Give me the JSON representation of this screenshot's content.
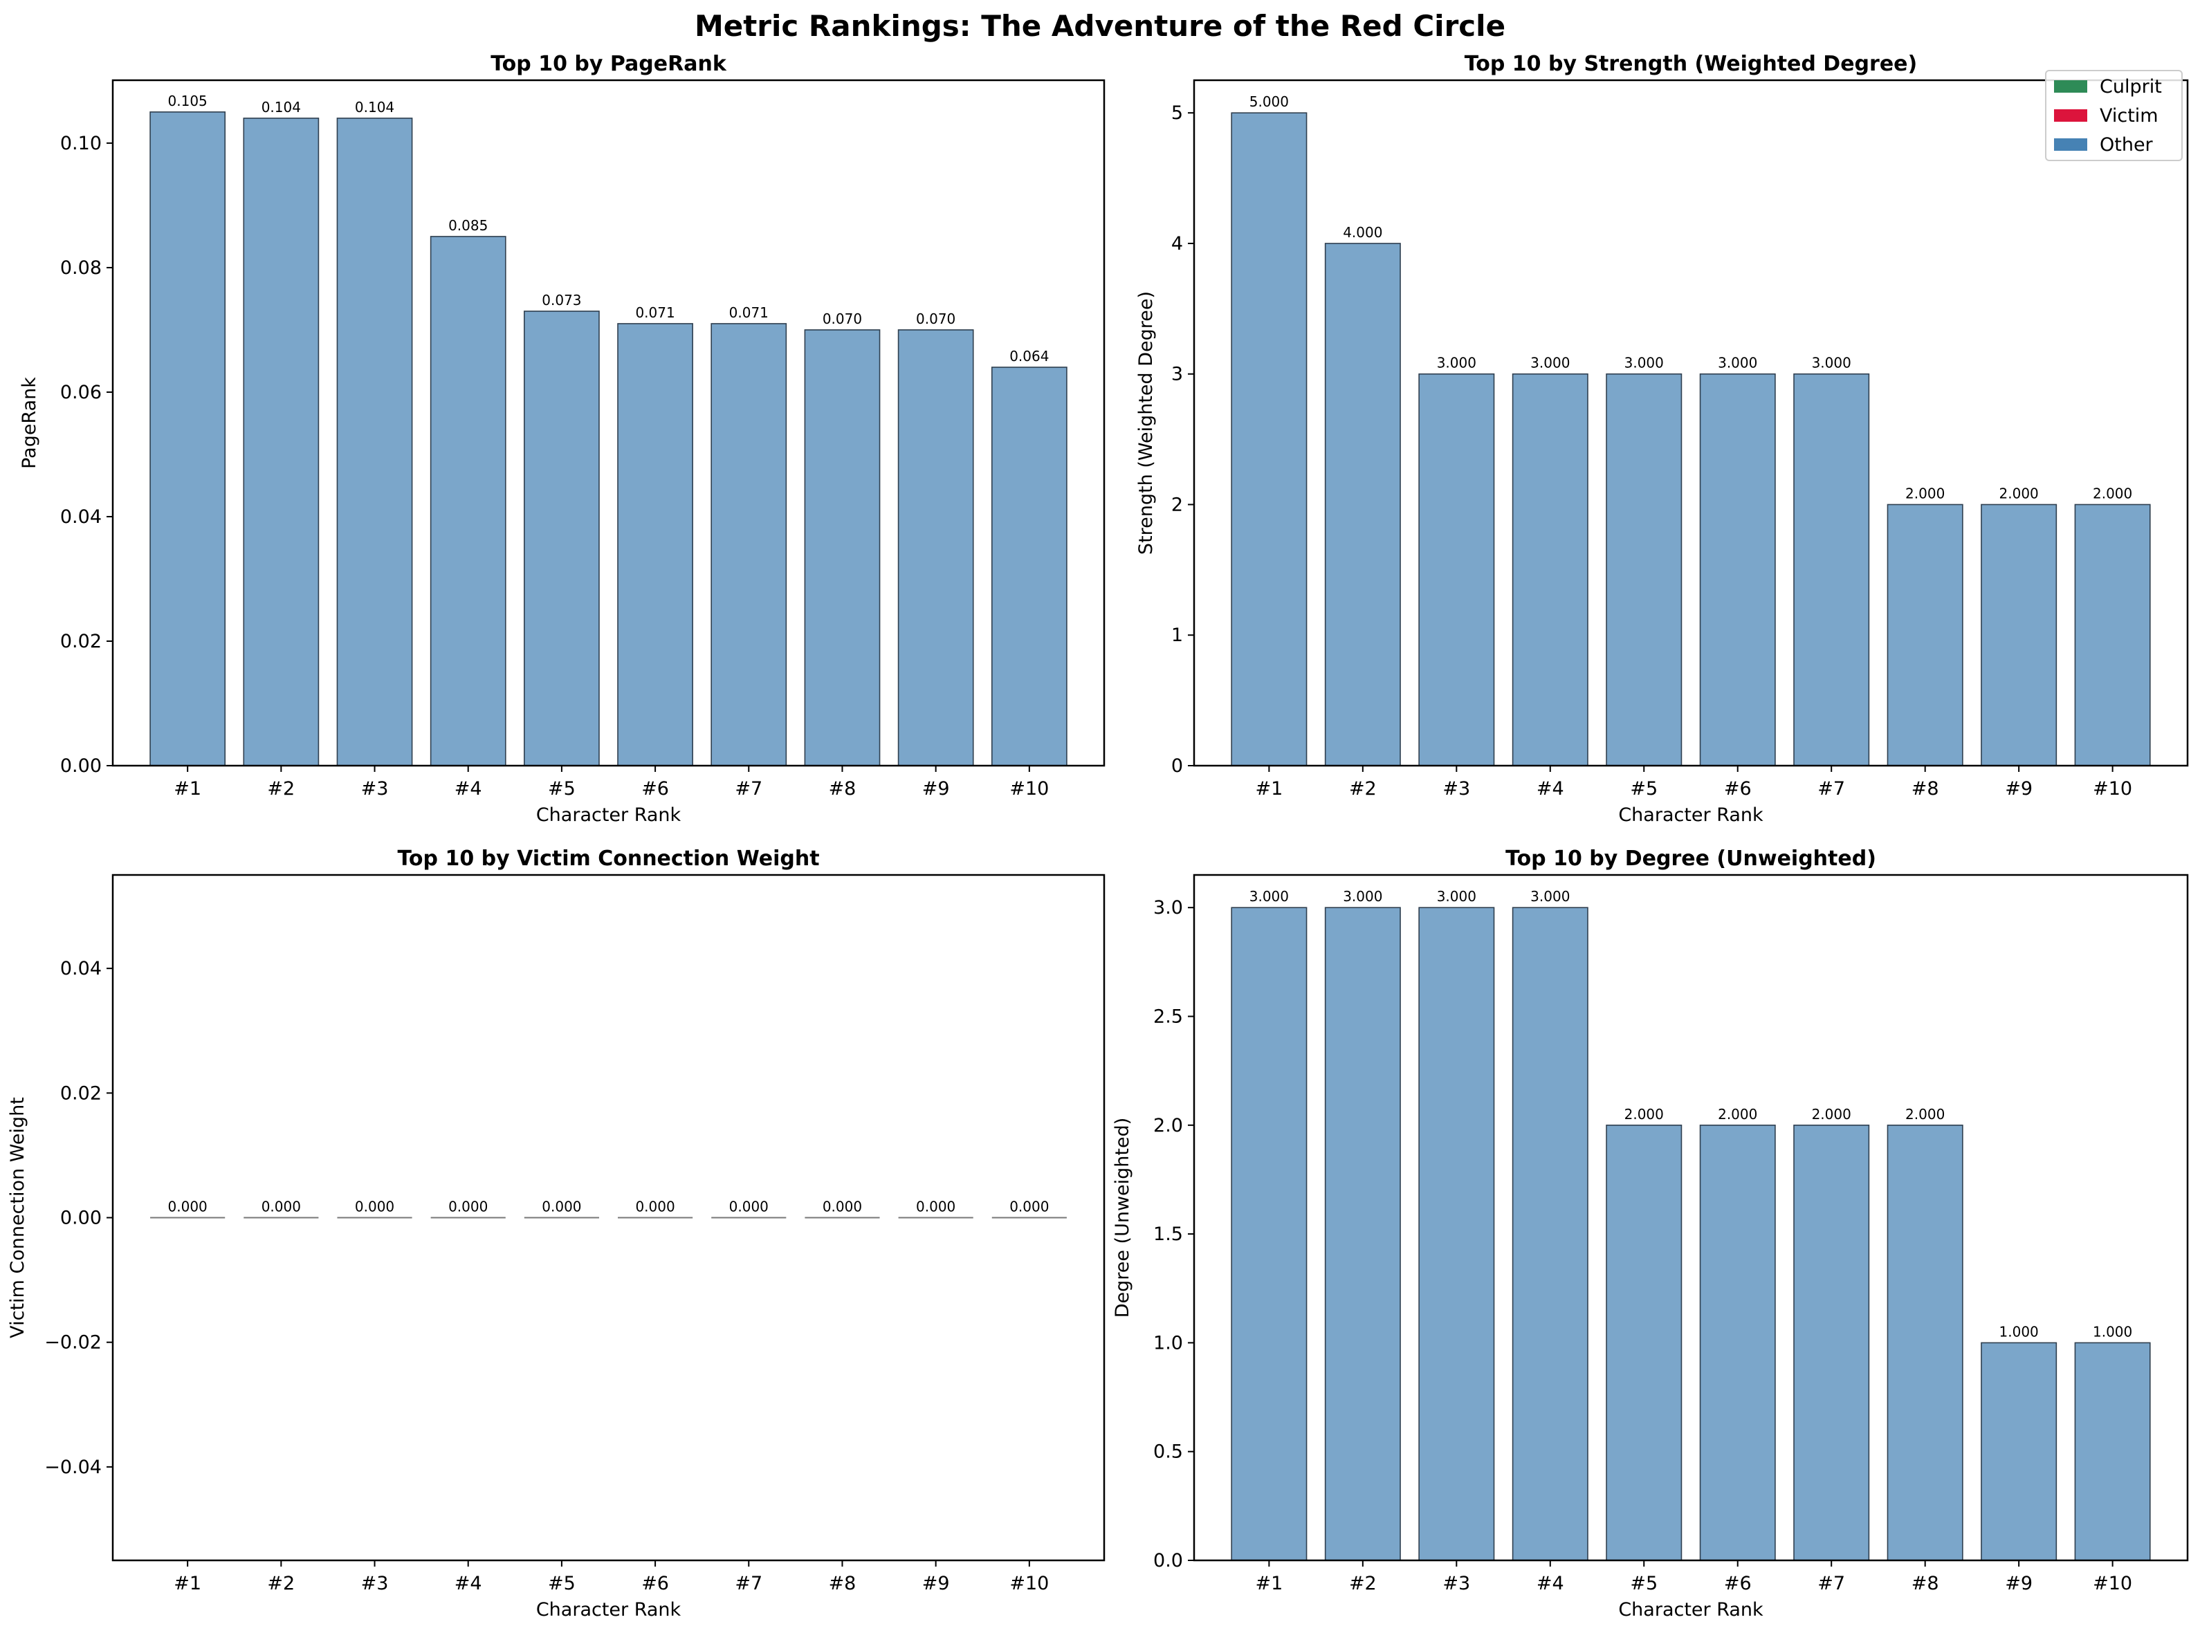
{
  "suptitle": "Metric Rankings: The Adventure of the Red Circle",
  "legend": {
    "placement": "top-right of top-right panel",
    "items": [
      {
        "label": "Culprit",
        "color": "#2e8b57"
      },
      {
        "label": "Victim",
        "color": "#dc143c"
      },
      {
        "label": "Other",
        "color": "#4682b4"
      }
    ]
  },
  "chart_data": [
    {
      "type": "bar",
      "title": "Top 10 by PageRank",
      "xlabel": "Character Rank",
      "ylabel": "PageRank",
      "categories": [
        "#1",
        "#2",
        "#3",
        "#4",
        "#5",
        "#6",
        "#7",
        "#8",
        "#9",
        "#10"
      ],
      "values": [
        0.105,
        0.104,
        0.104,
        0.085,
        0.073,
        0.071,
        0.071,
        0.07,
        0.07,
        0.064
      ],
      "value_labels": [
        "0.105",
        "0.104",
        "0.104",
        "0.085",
        "0.073",
        "0.071",
        "0.071",
        "0.070",
        "0.070",
        "0.064"
      ],
      "ylim": [
        0,
        0.1101
      ],
      "yticks": [
        0.0,
        0.02,
        0.04,
        0.06,
        0.08,
        0.1
      ],
      "ytick_labels": [
        "0.00",
        "0.02",
        "0.04",
        "0.06",
        "0.08",
        "0.10"
      ],
      "bar_color": "#7ba6ca",
      "grid": false
    },
    {
      "type": "bar",
      "title": "Top 10 by Strength (Weighted Degree)",
      "xlabel": "Character Rank",
      "ylabel": "Strength (Weighted Degree)",
      "categories": [
        "#1",
        "#2",
        "#3",
        "#4",
        "#5",
        "#6",
        "#7",
        "#8",
        "#9",
        "#10"
      ],
      "values": [
        5,
        4,
        3,
        3,
        3,
        3,
        3,
        2,
        2,
        2
      ],
      "value_labels": [
        "5.000",
        "4.000",
        "3.000",
        "3.000",
        "3.000",
        "3.000",
        "3.000",
        "2.000",
        "2.000",
        "2.000"
      ],
      "ylim": [
        0,
        5.25
      ],
      "yticks": [
        0,
        1,
        2,
        3,
        4,
        5
      ],
      "ytick_labels": [
        "0",
        "1",
        "2",
        "3",
        "4",
        "5"
      ],
      "bar_color": "#7ba6ca",
      "grid": false,
      "legend": true
    },
    {
      "type": "bar",
      "title": "Top 10 by Victim Connection Weight",
      "xlabel": "Character Rank",
      "ylabel": "Victim Connection Weight",
      "categories": [
        "#1",
        "#2",
        "#3",
        "#4",
        "#5",
        "#6",
        "#7",
        "#8",
        "#9",
        "#10"
      ],
      "values": [
        0,
        0,
        0,
        0,
        0,
        0,
        0,
        0,
        0,
        0
      ],
      "value_labels": [
        "0.000",
        "0.000",
        "0.000",
        "0.000",
        "0.000",
        "0.000",
        "0.000",
        "0.000",
        "0.000",
        "0.000"
      ],
      "ylim": [
        -0.055,
        0.055
      ],
      "yticks": [
        -0.04,
        -0.02,
        0.0,
        0.02,
        0.04
      ],
      "ytick_labels": [
        "−0.04",
        "−0.02",
        "0.00",
        "0.02",
        "0.04"
      ],
      "bar_color": "#7ba6ca",
      "grid": false
    },
    {
      "type": "bar",
      "title": "Top 10 by Degree (Unweighted)",
      "xlabel": "Character Rank",
      "ylabel": "Degree (Unweighted)",
      "categories": [
        "#1",
        "#2",
        "#3",
        "#4",
        "#5",
        "#6",
        "#7",
        "#8",
        "#9",
        "#10"
      ],
      "values": [
        3,
        3,
        3,
        3,
        2,
        2,
        2,
        2,
        1,
        1
      ],
      "value_labels": [
        "3.000",
        "3.000",
        "3.000",
        "3.000",
        "2.000",
        "2.000",
        "2.000",
        "2.000",
        "1.000",
        "1.000"
      ],
      "ylim": [
        0,
        3.15
      ],
      "yticks": [
        0.0,
        0.5,
        1.0,
        1.5,
        2.0,
        2.5,
        3.0
      ],
      "ytick_labels": [
        "0.0",
        "0.5",
        "1.0",
        "1.5",
        "2.0",
        "2.5",
        "3.0"
      ],
      "bar_color": "#7ba6ca",
      "grid": false
    }
  ]
}
